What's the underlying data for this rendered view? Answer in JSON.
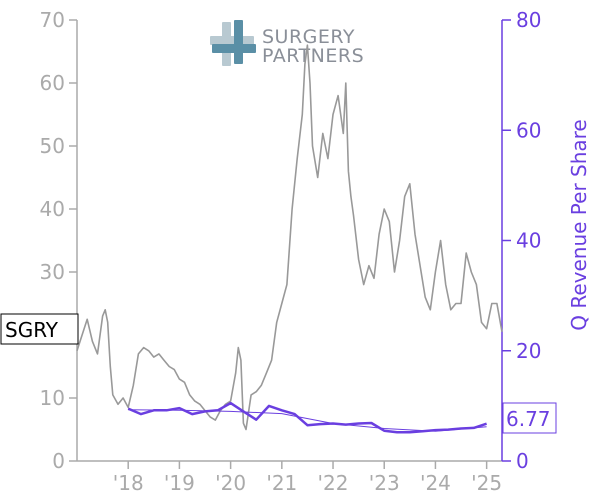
{
  "logo": {
    "line1": "SURGERY",
    "line2": "PARTNERS",
    "cross_colors": [
      "#b8c9d1",
      "#5a8fa6"
    ]
  },
  "chart_data": {
    "type": "line",
    "ticker": "SGRY",
    "last_value_label": "6.77",
    "y_left": {
      "ylim": [
        0,
        70
      ],
      "ticks": [
        "0",
        "10",
        "20",
        "30",
        "40",
        "50",
        "60",
        "70"
      ]
    },
    "y_right": {
      "ylim": [
        0,
        80
      ],
      "ticks": [
        "0",
        "20",
        "40",
        "60",
        "80"
      ],
      "label": "Q Revenue Per Share"
    },
    "x_axis": {
      "xlim": [
        2017.0,
        2025.3
      ],
      "ticks": [
        {
          "value": 2018,
          "label": "'18"
        },
        {
          "value": 2019,
          "label": "'19"
        },
        {
          "value": 2020,
          "label": "'20"
        },
        {
          "value": 2021,
          "label": "'21"
        },
        {
          "value": 2022,
          "label": "'22"
        },
        {
          "value": 2023,
          "label": "'23"
        },
        {
          "value": 2024,
          "label": "'24"
        },
        {
          "value": 2025,
          "label": "'25"
        }
      ]
    },
    "grid": false,
    "colors": {
      "price": "#999999",
      "revenue": "#6a3fe0",
      "axis_left": "#aaaaaa",
      "axis_right": "#6a3fe0"
    },
    "series": [
      {
        "axis": "left",
        "x": [
          2017.0,
          2017.1,
          2017.2,
          2017.3,
          2017.4,
          2017.5,
          2017.55,
          2017.6,
          2017.65,
          2017.7,
          2017.8,
          2017.9,
          2018.0,
          2018.1,
          2018.2,
          2018.3,
          2018.4,
          2018.5,
          2018.6,
          2018.7,
          2018.8,
          2018.9,
          2019.0,
          2019.1,
          2019.2,
          2019.3,
          2019.4,
          2019.5,
          2019.6,
          2019.7,
          2019.8,
          2019.9,
          2020.0,
          2020.1,
          2020.15,
          2020.2,
          2020.25,
          2020.3,
          2020.4,
          2020.5,
          2020.6,
          2020.7,
          2020.8,
          2020.9,
          2021.0,
          2021.1,
          2021.2,
          2021.3,
          2021.4,
          2021.45,
          2021.5,
          2021.55,
          2021.6,
          2021.7,
          2021.8,
          2021.9,
          2022.0,
          2022.1,
          2022.2,
          2022.25,
          2022.3,
          2022.35,
          2022.4,
          2022.5,
          2022.6,
          2022.7,
          2022.8,
          2022.9,
          2023.0,
          2023.1,
          2023.2,
          2023.3,
          2023.4,
          2023.5,
          2023.6,
          2023.7,
          2023.8,
          2023.9,
          2024.0,
          2024.1,
          2024.2,
          2024.3,
          2024.4,
          2024.5,
          2024.6,
          2024.7,
          2024.8,
          2024.9,
          2025.0,
          2025.1,
          2025.2,
          2025.3
        ],
        "y": [
          17.5,
          20.0,
          22.5,
          19.0,
          17.0,
          23.0,
          24.0,
          22.0,
          15.0,
          10.5,
          9.0,
          10.0,
          8.5,
          12.0,
          17.0,
          18.0,
          17.5,
          16.5,
          17.0,
          16.0,
          15.0,
          14.5,
          13.0,
          12.5,
          10.5,
          9.5,
          9.0,
          8.0,
          7.0,
          6.5,
          8.0,
          9.0,
          9.5,
          14.0,
          18.0,
          16.0,
          6.0,
          5.0,
          10.5,
          11.0,
          12.0,
          14.0,
          16.0,
          22.0,
          25.0,
          28.0,
          40.0,
          48.0,
          55.0,
          63.0,
          66.0,
          60.0,
          50.0,
          45.0,
          52.0,
          48.0,
          55.0,
          58.0,
          52.0,
          60.0,
          46.0,
          42.0,
          39.0,
          32.0,
          28.0,
          31.0,
          29.0,
          36.0,
          40.0,
          38.0,
          30.0,
          35.0,
          42.0,
          44.0,
          36.0,
          31.0,
          26.0,
          24.0,
          30.0,
          35.0,
          28.0,
          24.0,
          25.0,
          25.0,
          33.0,
          30.0,
          28.0,
          22.0,
          21.0,
          25.0,
          25.0,
          20.5
        ]
      },
      {
        "axis": "right",
        "x": [
          2018.0,
          2018.25,
          2018.5,
          2018.75,
          2019.0,
          2019.25,
          2019.5,
          2019.75,
          2020.0,
          2020.25,
          2020.5,
          2020.75,
          2021.0,
          2021.25,
          2021.5,
          2021.75,
          2022.0,
          2022.25,
          2022.5,
          2022.75,
          2023.0,
          2023.25,
          2023.5,
          2023.75,
          2024.0,
          2024.25,
          2024.5,
          2024.75,
          2025.0
        ],
        "y": [
          9.5,
          8.5,
          9.2,
          9.2,
          9.6,
          8.5,
          9.0,
          9.2,
          10.5,
          9.0,
          7.5,
          10.0,
          9.2,
          8.5,
          6.5,
          6.7,
          6.8,
          6.6,
          6.8,
          6.9,
          5.5,
          5.2,
          5.2,
          5.4,
          5.6,
          5.7,
          5.9,
          6.0,
          6.77
        ]
      },
      {
        "axis": "right",
        "x": [
          2018.0,
          2019.0,
          2020.0,
          2021.0,
          2022.0,
          2023.0,
          2024.0,
          2025.0
        ],
        "y": [
          9.3,
          9.2,
          9.0,
          8.6,
          6.8,
          5.9,
          5.4,
          6.2
        ]
      }
    ]
  }
}
